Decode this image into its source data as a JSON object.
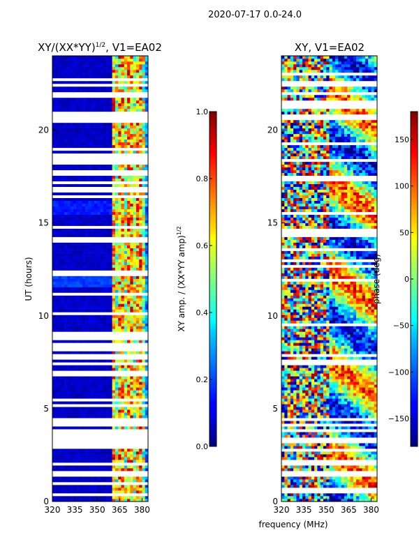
{
  "figure": {
    "suptitle": "2020-07-17 0.0-24.0"
  },
  "chart_data": [
    {
      "type": "heatmap",
      "title": "XY/(XX*YY)^1/2, V1=EA02",
      "title_main": "XY/(XX*YY)",
      "title_exp": "1/2",
      "title_tail": ", V1=EA02",
      "xlabel": "",
      "ylabel": "UT (hours)",
      "x_ticks": [
        320,
        335,
        350,
        365,
        380
      ],
      "x_tick_labels": [
        "320",
        "335",
        "350",
        "365",
        "380"
      ],
      "xlim": [
        320,
        384
      ],
      "y_ticks": [
        0,
        5,
        10,
        15,
        20
      ],
      "y_tick_labels": [
        "0",
        "5",
        "10",
        "15",
        "20"
      ],
      "ylim": [
        0,
        24
      ],
      "colorbar": {
        "label": "XY amp. / (XX*YY amp)^1/2",
        "label_main": "XY amp. / (XX*YY amp)",
        "label_exp": "1/2",
        "range": [
          0.0,
          1.0
        ],
        "ticks": [
          0.0,
          0.2,
          0.4,
          0.6,
          0.8,
          1.0
        ],
        "tick_labels": [
          "0.0",
          "0.2",
          "0.4",
          "0.6",
          "0.8",
          "1.0"
        ],
        "colormap": "jet"
      },
      "description": "Normalized cross-correlation amplitude vs frequency and UT; low (~0.05) below 361 MHz, high (0.4-1.0) in 361-383 MHz channels",
      "flagged_rows_hours": [
        0.4,
        1.0,
        1.5,
        2.0,
        3.0,
        3.3,
        3.6,
        3.8,
        4.2,
        4.4,
        5.2,
        5.5,
        6.8,
        7.0,
        7.4,
        7.8,
        8.2,
        8.4,
        8.8,
        9.0,
        10.1,
        11.2,
        12.3,
        14.1,
        14.8,
        16.4,
        16.8,
        17.2,
        17.6,
        17.8,
        18.3,
        18.6,
        19.0,
        20.5,
        20.7,
        20.9,
        21.8,
        22.0,
        22.4,
        22.7
      ]
    },
    {
      "type": "heatmap",
      "title": "XY, V1=EA02",
      "xlabel": "frequency (MHz)",
      "ylabel": "",
      "x_ticks": [
        320,
        335,
        350,
        365,
        380
      ],
      "x_tick_labels": [
        "320",
        "335",
        "350",
        "365",
        "380"
      ],
      "xlim": [
        320,
        384
      ],
      "y_ticks": [
        0,
        5,
        10,
        15,
        20
      ],
      "y_tick_labels": [
        "0",
        "5",
        "10",
        "15",
        "20"
      ],
      "ylim": [
        0,
        24
      ],
      "colorbar": {
        "label": "phase (deg)",
        "range": [
          -180,
          180
        ],
        "ticks": [
          -150,
          -100,
          -50,
          0,
          50,
          100,
          150
        ],
        "tick_labels": [
          "−150",
          "−100",
          "−50",
          "0",
          "50",
          "100",
          "150"
        ],
        "colormap": "jet"
      },
      "description": "Cross-correlation phase vs frequency and UT; noisy speckle below 355 MHz, smoother bands at higher frequencies",
      "flagged_rows_hours": [
        0.6,
        1.5,
        2.1,
        2.8,
        3.3,
        3.8,
        4.1,
        4.4,
        7.5,
        7.9,
        9.5,
        11.9,
        12.7,
        13.0,
        13.6,
        14.4,
        14.6,
        15.5,
        17.3,
        17.5,
        18.4,
        19.3,
        20.7,
        21.3,
        21.5,
        22.0,
        22.5,
        23.0
      ]
    }
  ]
}
